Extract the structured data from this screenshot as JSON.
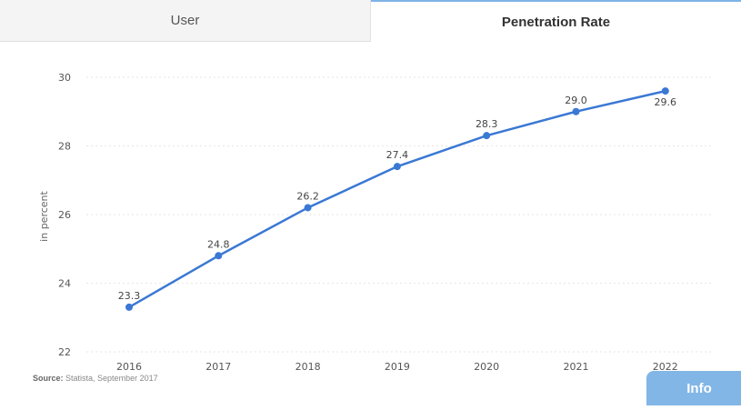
{
  "tabs": {
    "user_label": "User",
    "penetration_label": "Penetration Rate"
  },
  "source": {
    "prefix": "Source:",
    "text": "Statista, September 2017"
  },
  "info_button": {
    "label": "Info"
  },
  "colors": {
    "line": "#3a78d4",
    "active_tab_border": "#7fb3e6",
    "info_button": "#82b6e6"
  },
  "chart_data": {
    "type": "line",
    "title": "",
    "xlabel": "",
    "ylabel": "in percent",
    "categories": [
      "2016",
      "2017",
      "2018",
      "2019",
      "2020",
      "2021",
      "2022"
    ],
    "series": [
      {
        "values": [
          23.3,
          24.8,
          26.2,
          27.4,
          28.3,
          29.0,
          29.6
        ]
      }
    ],
    "data_labels": [
      "23.3",
      "24.8",
      "26.2",
      "27.4",
      "28.3",
      "29.0",
      "29.6"
    ],
    "y_ticks": [
      "22",
      "24",
      "26",
      "28",
      "30"
    ],
    "ylim": [
      22,
      30
    ],
    "grid": true,
    "legend": "none"
  }
}
